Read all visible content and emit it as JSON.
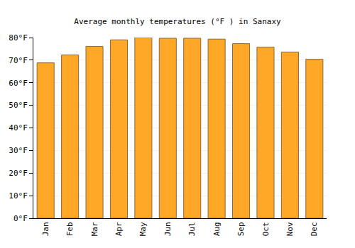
{
  "chart_data": {
    "type": "bar",
    "title": "Average monthly temperatures (°F ) in Sanaxy",
    "categories": [
      "Jan",
      "Feb",
      "Mar",
      "Apr",
      "May",
      "Jun",
      "Jul",
      "Aug",
      "Sep",
      "Oct",
      "Nov",
      "Dec"
    ],
    "values": [
      68.8,
      72.3,
      76.1,
      79.0,
      80.0,
      79.7,
      79.7,
      79.3,
      77.3,
      75.8,
      73.6,
      70.4
    ],
    "color": "#ffa726",
    "ylim": [
      0,
      80
    ],
    "yticks": [
      {
        "value": 0,
        "label": "0°F"
      },
      {
        "value": 10,
        "label": "10°F"
      },
      {
        "value": 20,
        "label": "20°F"
      },
      {
        "value": 30,
        "label": "30°F"
      },
      {
        "value": 40,
        "label": "40°F"
      },
      {
        "value": 50,
        "label": "50°F"
      },
      {
        "value": 60,
        "label": "60°F"
      },
      {
        "value": 70,
        "label": "70°F"
      },
      {
        "value": 80,
        "label": "80°F"
      }
    ],
    "grid": true
  }
}
